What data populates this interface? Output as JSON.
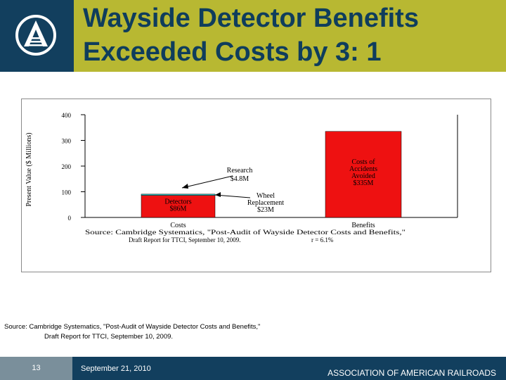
{
  "header": {
    "title_line1": "Wayside Detector Benefits",
    "title_line2": "Exceeded Costs by 3: 1"
  },
  "colors": {
    "brand_navy": "#123f5e",
    "title_bar": "#b8b832",
    "bar_red": "#ee1111",
    "bar_cyan": "#2ec4c4"
  },
  "chart_data": {
    "type": "bar",
    "ylabel": "Present Value ($ Millions)",
    "ylim": [
      0,
      400
    ],
    "yticks": [
      "0",
      "100",
      "200",
      "300",
      "400"
    ],
    "categories": [
      "Costs",
      "Benefits"
    ],
    "series": [
      {
        "name": "Detectors",
        "category": "Costs",
        "value": 86,
        "label": [
          "Detectors",
          "$86M"
        ]
      },
      {
        "name": "Research",
        "category": "Costs",
        "value": 4.8,
        "label": [
          "Research",
          "$4.8M"
        ]
      },
      {
        "name": "Wheel Replacement",
        "category": "Costs",
        "value": 23,
        "label": [
          "Wheel",
          "Replacement",
          "$23M"
        ]
      },
      {
        "name": "Costs of Accidents Avoided",
        "category": "Benefits",
        "value": 335,
        "label": [
          "Costs of",
          "Accidents",
          "Avoided",
          "$335M"
        ]
      }
    ],
    "source_line1": "Source: Cambridge Systematics, \"Post-Audit of Wayside Detector Costs and Benefits,\"",
    "source_line2": "Draft Report for TTCI, September 10, 2009.",
    "footnote": "r = 6.1%",
    "grid": false
  },
  "source": {
    "line1": "Source: Cambridge Systematics, \"Post-Audit of Wayside Detector Costs and Benefits,\"",
    "line2": "Draft Report for TTCI, September 10, 2009."
  },
  "footer": {
    "page_number": "13",
    "date": "September 21, 2010",
    "organization": "ASSOCIATION OF AMERICAN RAILROADS"
  }
}
